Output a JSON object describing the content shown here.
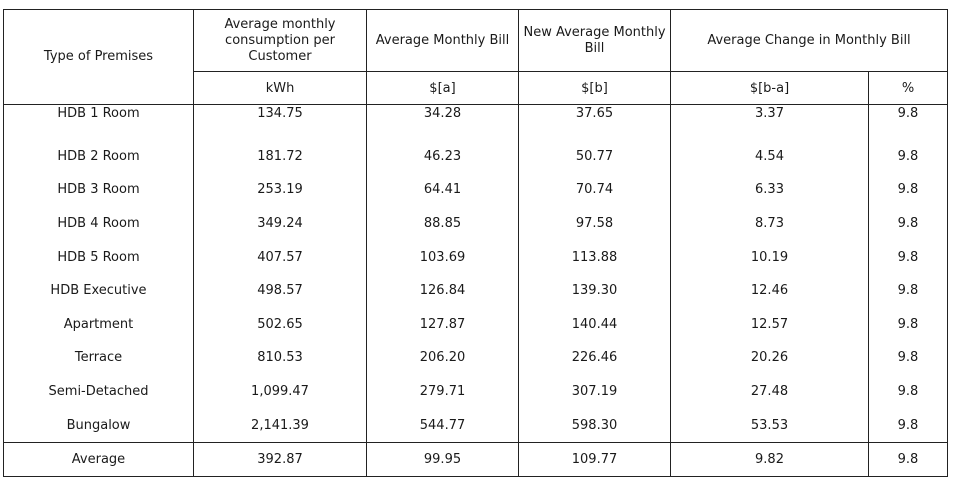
{
  "table": {
    "headers": {
      "premises": "Type of Premises",
      "consumption": "Average monthly consumption per Customer",
      "avg_bill": "Average Monthly Bill",
      "new_bill": "New Average Monthly Bill",
      "change": "Average Change in Monthly Bill"
    },
    "units": {
      "consumption": "kWh",
      "avg_bill": "$[a]",
      "new_bill": "$[b]",
      "change_abs": "$[b-a]",
      "change_pct": "%"
    },
    "rows": [
      {
        "premises": "HDB 1 Room",
        "consumption": "134.75",
        "avg_bill": "34.28",
        "new_bill": "37.65",
        "change_abs": "3.37",
        "change_pct": "9.8"
      },
      {
        "premises": "HDB 2 Room",
        "consumption": "181.72",
        "avg_bill": "46.23",
        "new_bill": "50.77",
        "change_abs": "4.54",
        "change_pct": "9.8"
      },
      {
        "premises": "HDB 3 Room",
        "consumption": "253.19",
        "avg_bill": "64.41",
        "new_bill": "70.74",
        "change_abs": "6.33",
        "change_pct": "9.8"
      },
      {
        "premises": "HDB 4 Room",
        "consumption": "349.24",
        "avg_bill": "88.85",
        "new_bill": "97.58",
        "change_abs": "8.73",
        "change_pct": "9.8"
      },
      {
        "premises": "HDB 5 Room",
        "consumption": "407.57",
        "avg_bill": "103.69",
        "new_bill": "113.88",
        "change_abs": "10.19",
        "change_pct": "9.8"
      },
      {
        "premises": "HDB Executive",
        "consumption": "498.57",
        "avg_bill": "126.84",
        "new_bill": "139.30",
        "change_abs": "12.46",
        "change_pct": "9.8"
      },
      {
        "premises": "Apartment",
        "consumption": "502.65",
        "avg_bill": "127.87",
        "new_bill": "140.44",
        "change_abs": "12.57",
        "change_pct": "9.8"
      },
      {
        "premises": "Terrace",
        "consumption": "810.53",
        "avg_bill": "206.20",
        "new_bill": "226.46",
        "change_abs": "20.26",
        "change_pct": "9.8"
      },
      {
        "premises": "Semi-Detached",
        "consumption": "1,099.47",
        "avg_bill": "279.71",
        "new_bill": "307.19",
        "change_abs": "27.48",
        "change_pct": "9.8"
      },
      {
        "premises": "Bungalow",
        "consumption": "2,141.39",
        "avg_bill": "544.77",
        "new_bill": "598.30",
        "change_abs": "53.53",
        "change_pct": "9.8"
      }
    ],
    "average": {
      "premises": "Average",
      "consumption": "392.87",
      "avg_bill": "99.95",
      "new_bill": "109.77",
      "change_abs": "9.82",
      "change_pct": "9.8"
    }
  }
}
